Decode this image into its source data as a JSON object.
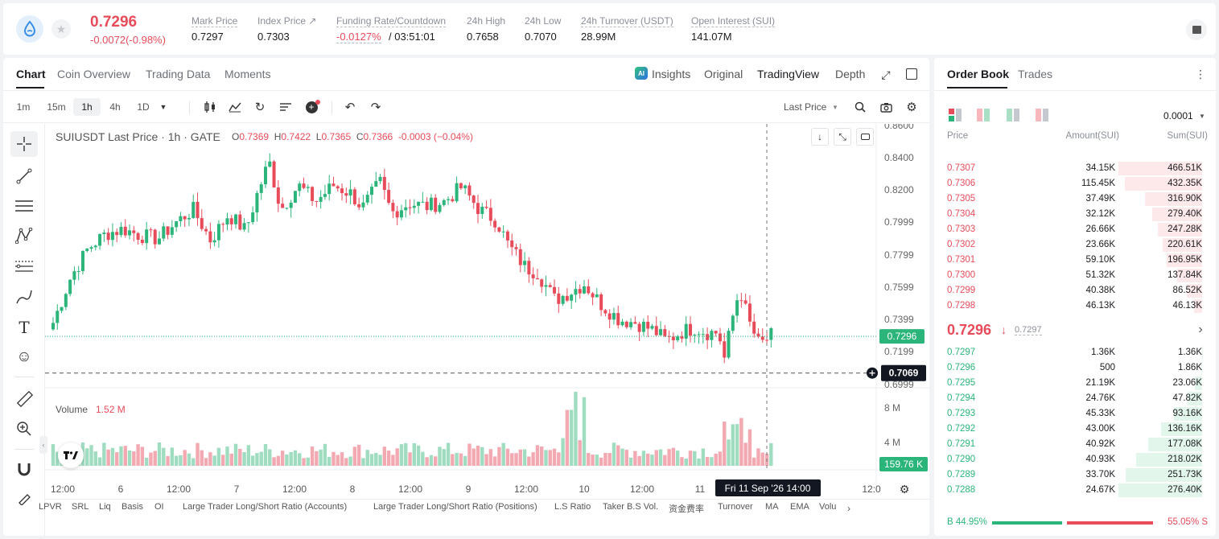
{
  "ticker": {
    "price": "0.7296",
    "change": "-0.0072(-0.98%)",
    "stats": [
      {
        "label": "Mark Price",
        "value": "0.7297"
      },
      {
        "label": "Index Price ↗",
        "value": "0.7303"
      },
      {
        "label": "Funding Rate/Countdown",
        "value": "-0.0127%",
        "extra": "/ 03:51:01"
      },
      {
        "label": "24h High",
        "value": "0.7658"
      },
      {
        "label": "24h Low",
        "value": "0.7070"
      },
      {
        "label": "24h Turnover (USDT)",
        "value": "28.99M"
      },
      {
        "label": "Open Interest (SUI)",
        "value": "141.07M"
      }
    ]
  },
  "chart_tabs": [
    "Chart",
    "Coin Overview",
    "Trading Data",
    "Moments"
  ],
  "view_tabs": {
    "insights": "Insights",
    "original": "Original",
    "tradingview": "TradingView",
    "depth": "Depth"
  },
  "intervals": [
    "1m",
    "15m",
    "1h",
    "4h",
    "1D"
  ],
  "price_type": "Last Price",
  "legend": {
    "symbol": "SUIUSDT Last Price · 1h · GATE",
    "o_label": "O",
    "o": "0.7369",
    "h_label": "H",
    "h": "0.7422",
    "l_label": "L",
    "l": "0.7365",
    "c_label": "C",
    "c": "0.7366",
    "chg": "-0.0003 (−0.04%)"
  },
  "volume_legend": {
    "label": "Volume",
    "value": "1.52 M"
  },
  "y_ticks": [
    "0.8600",
    "0.8400",
    "0.8200",
    "0.7999",
    "0.7799",
    "0.7599",
    "0.7399",
    "0.7199",
    "0.6999"
  ],
  "last_price_tag": "0.7296",
  "cursor_price_tag": "0.7069",
  "vol_ticks": [
    "8 M",
    "4 M"
  ],
  "vol_tag": "159.76 K",
  "x_ticks": [
    "12:00",
    "6",
    "12:00",
    "7",
    "12:00",
    "8",
    "12:00",
    "9",
    "12:00",
    "10",
    "12:00",
    "11",
    "12:0"
  ],
  "cursor_time": "Fri 11 Sep '26   14:00",
  "bottom_tabs": [
    "LPVR",
    "SRL",
    "Liq",
    "Basis",
    "OI",
    "Large Trader Long/Short Ratio (Accounts)",
    "Large Trader Long/Short Ratio (Positions)",
    "L.S Ratio",
    "Taker B.S Vol.",
    "资金费率",
    "Turnover",
    "MA",
    "EMA",
    "Volu"
  ],
  "orderbook": {
    "tabs": [
      "Order Book",
      "Trades"
    ],
    "precision": "0.0001",
    "headers": [
      "Price",
      "Amount(SUI)",
      "Sum(SUI)"
    ],
    "asks": [
      {
        "price": "0.7307",
        "amount": "34.15K",
        "sum": "466.51K"
      },
      {
        "price": "0.7306",
        "amount": "115.45K",
        "sum": "432.35K"
      },
      {
        "price": "0.7305",
        "amount": "37.49K",
        "sum": "316.90K"
      },
      {
        "price": "0.7304",
        "amount": "32.12K",
        "sum": "279.40K"
      },
      {
        "price": "0.7303",
        "amount": "26.66K",
        "sum": "247.28K"
      },
      {
        "price": "0.7302",
        "amount": "23.66K",
        "sum": "220.61K"
      },
      {
        "price": "0.7301",
        "amount": "59.10K",
        "sum": "196.95K"
      },
      {
        "price": "0.7300",
        "amount": "51.32K",
        "sum": "137.84K"
      },
      {
        "price": "0.7299",
        "amount": "40.38K",
        "sum": "86.52K"
      },
      {
        "price": "0.7298",
        "amount": "46.13K",
        "sum": "46.13K"
      }
    ],
    "mid_price": "0.7296",
    "mid_mark": "0.7297",
    "bids": [
      {
        "price": "0.7297",
        "amount": "1.36K",
        "sum": "1.36K"
      },
      {
        "price": "0.7296",
        "amount": "500",
        "sum": "1.86K"
      },
      {
        "price": "0.7295",
        "amount": "21.19K",
        "sum": "23.06K"
      },
      {
        "price": "0.7294",
        "amount": "24.76K",
        "sum": "47.82K"
      },
      {
        "price": "0.7293",
        "amount": "45.33K",
        "sum": "93.16K"
      },
      {
        "price": "0.7292",
        "amount": "43.00K",
        "sum": "136.16K"
      },
      {
        "price": "0.7291",
        "amount": "40.92K",
        "sum": "177.08K"
      },
      {
        "price": "0.7290",
        "amount": "40.93K",
        "sum": "218.02K"
      },
      {
        "price": "0.7289",
        "amount": "33.70K",
        "sum": "251.73K"
      },
      {
        "price": "0.7288",
        "amount": "24.67K",
        "sum": "276.40K"
      }
    ],
    "ratio_buy": "B 44.95%",
    "ratio_sell": "55.05% S",
    "buy_fraction": 0.4495
  },
  "colors": {
    "up": "#2bb57a",
    "down": "#e84b5a",
    "up_light": "#e3f6ec",
    "down_light": "#fde8ea"
  }
}
